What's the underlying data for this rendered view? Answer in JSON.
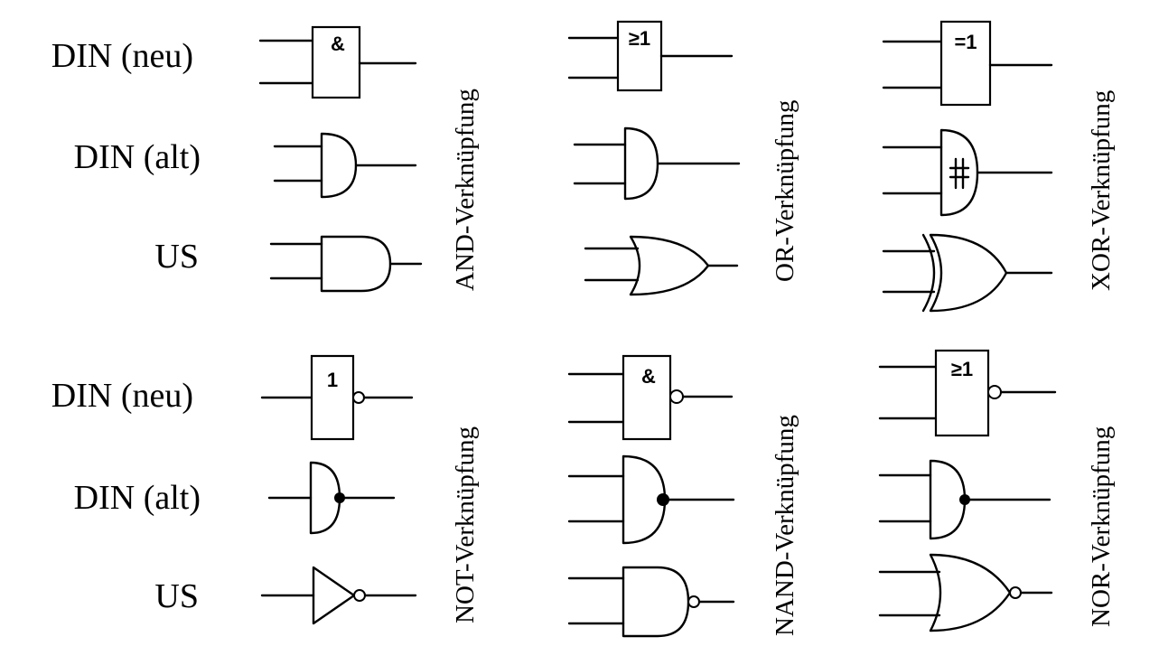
{
  "rows": {
    "din_neu": "DIN (neu)",
    "din_alt": "DIN (alt)",
    "us": "US"
  },
  "gates": {
    "and": {
      "name": "AND-Verknüpfung",
      "symbol": "&"
    },
    "or": {
      "name": "OR-Verknüpfung",
      "symbol": "≥1"
    },
    "xor": {
      "name": "XOR-Verknüpfung",
      "symbol": "=1"
    },
    "not": {
      "name": "NOT-Verknüpfung",
      "symbol": "1"
    },
    "nand": {
      "name": "NAND-Verknüpfung",
      "symbol": "&"
    },
    "nor": {
      "name": "NOR-Verknüpfung",
      "symbol": "≥1"
    }
  },
  "colors": {
    "ink": "#000000",
    "background": "#ffffff"
  }
}
